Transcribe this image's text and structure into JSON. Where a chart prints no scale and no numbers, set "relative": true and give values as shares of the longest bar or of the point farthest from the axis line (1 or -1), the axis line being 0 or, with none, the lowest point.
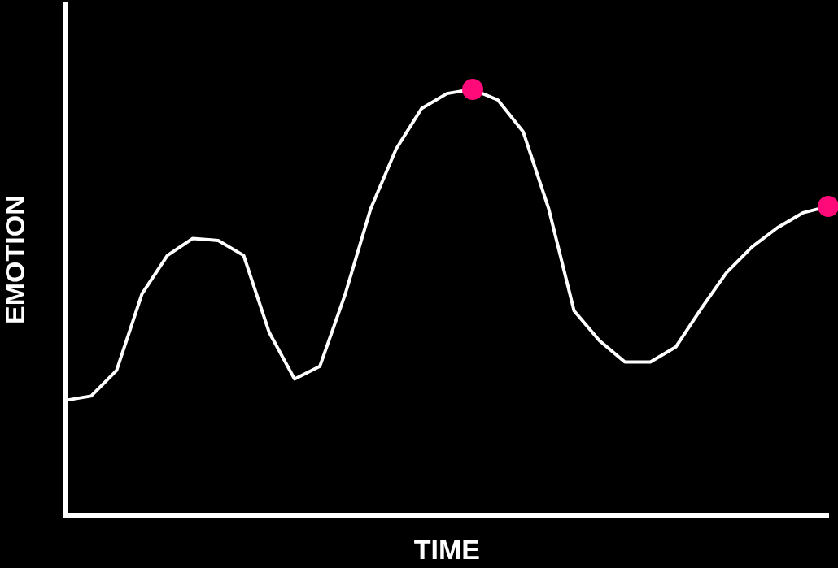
{
  "chart_data": {
    "type": "line",
    "xlabel": "TIME",
    "ylabel": "EMOTION",
    "relative": true,
    "grid": false,
    "legend": false,
    "marker": "none",
    "line_style": "solid",
    "categories": [
      null,
      null,
      null,
      null,
      null,
      null,
      null,
      null,
      null,
      null,
      null,
      null,
      null,
      null,
      null,
      null,
      null,
      null,
      null,
      null,
      null,
      null,
      null,
      null,
      null,
      null,
      null,
      null,
      null,
      null,
      null
    ],
    "series": [
      {
        "color": "#ffffff",
        "values": [
          0.27,
          0.28,
          0.34,
          0.52,
          0.61,
          0.65,
          0.645,
          0.61,
          0.43,
          0.32,
          0.35,
          0.52,
          0.72,
          0.86,
          0.955,
          0.99,
          1,
          0.975,
          0.9,
          0.72,
          0.48,
          0.41,
          0.36,
          0.36,
          0.395,
          0.485,
          0.57,
          0.63,
          0.675,
          0.71,
          0.725
        ]
      }
    ]
  }
}
